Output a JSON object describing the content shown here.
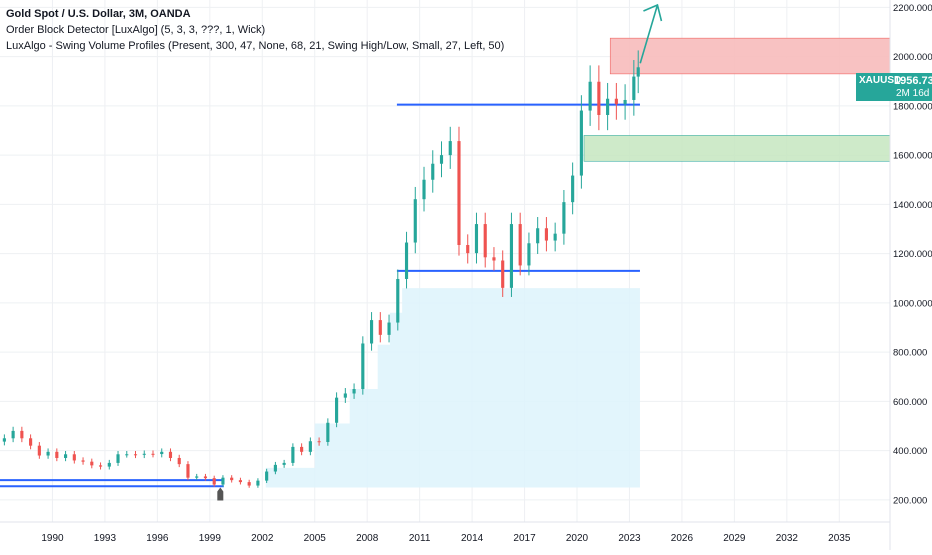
{
  "legend": {
    "title": "Gold Spot / U.S. Dollar, 3M, OANDA",
    "indicator_1": "Order Block Detector [LuxAlgo] (5, 3, 3, ???, 1, Wick)",
    "indicator_2": "LuxAlgo - Swing Volume Profiles (Present, 300, 47, None, 68, 21, Swing High/Low, Small, 27, Left, 50)"
  },
  "price_tag": {
    "symbol": "XAUUSD",
    "price": "1956.730",
    "countdown": "2M 16d",
    "color": "#26a69a"
  },
  "colors": {
    "up": "#26a69a",
    "down": "#ef5350",
    "hline": "#2962ff",
    "arrow": "#26a69a",
    "bear_ob_fill": "#f8bcbc",
    "bull_ob_fill": "#c9e8c4",
    "profile_fill": "#ddf3fb",
    "grid": "#eef0f3",
    "axis_text": "#131722"
  },
  "chart_data": {
    "type": "candlestick",
    "symbol": "XAUUSD",
    "timeframe": "3M",
    "x_ticks": [
      "1990",
      "1993",
      "1996",
      "1999",
      "2002",
      "2005",
      "2008",
      "2011",
      "2014",
      "2017",
      "2020",
      "2023",
      "2026",
      "2029",
      "2032",
      "2035"
    ],
    "y_ticks": [
      "200.000",
      "400.000",
      "600.000",
      "800.000",
      "1000.000",
      "1200.000",
      "1400.000",
      "1600.000",
      "1800.000",
      "2000.000",
      "2200.000"
    ],
    "y_range": [
      110,
      2230
    ],
    "x_range": [
      1987.0,
      2037.9
    ],
    "grid": true,
    "quarterly_close": [
      [
        1987.25,
        450
      ],
      [
        1987.75,
        480
      ],
      [
        1988.25,
        450
      ],
      [
        1988.75,
        420
      ],
      [
        1989.25,
        380
      ],
      [
        1989.75,
        395
      ],
      [
        1990.25,
        370
      ],
      [
        1990.75,
        385
      ],
      [
        1991.25,
        360
      ],
      [
        1991.75,
        355
      ],
      [
        1992.25,
        340
      ],
      [
        1992.75,
        335
      ],
      [
        1993.25,
        350
      ],
      [
        1993.75,
        385
      ],
      [
        1994.25,
        385
      ],
      [
        1994.75,
        383
      ],
      [
        1995.25,
        387
      ],
      [
        1995.75,
        386
      ],
      [
        1996.25,
        395
      ],
      [
        1996.75,
        370
      ],
      [
        1997.25,
        345
      ],
      [
        1997.75,
        290
      ],
      [
        1998.25,
        295
      ],
      [
        1998.75,
        288
      ],
      [
        1999.25,
        262
      ],
      [
        1999.75,
        290
      ],
      [
        2000.25,
        280
      ],
      [
        2000.75,
        272
      ],
      [
        2001.25,
        258
      ],
      [
        2001.75,
        278
      ],
      [
        2002.25,
        315
      ],
      [
        2002.75,
        342
      ],
      [
        2003.25,
        350
      ],
      [
        2003.75,
        415
      ],
      [
        2004.25,
        395
      ],
      [
        2004.75,
        438
      ],
      [
        2005.25,
        435
      ],
      [
        2005.75,
        513
      ],
      [
        2006.25,
        615
      ],
      [
        2006.75,
        632
      ],
      [
        2007.25,
        650
      ],
      [
        2007.75,
        835
      ],
      [
        2008.25,
        930
      ],
      [
        2008.75,
        870
      ],
      [
        2009.25,
        920
      ],
      [
        2009.75,
        1097
      ],
      [
        2010.25,
        1245
      ],
      [
        2010.75,
        1421
      ],
      [
        2011.25,
        1500
      ],
      [
        2011.75,
        1565
      ],
      [
        2012.25,
        1600
      ],
      [
        2012.75,
        1657
      ],
      [
        2013.25,
        1235
      ],
      [
        2013.75,
        1202
      ],
      [
        2014.25,
        1320
      ],
      [
        2014.75,
        1185
      ],
      [
        2015.25,
        1172
      ],
      [
        2015.75,
        1061
      ],
      [
        2016.25,
        1320
      ],
      [
        2016.75,
        1152
      ],
      [
        2017.25,
        1242
      ],
      [
        2017.75,
        1303
      ],
      [
        2018.25,
        1253
      ],
      [
        2018.75,
        1281
      ],
      [
        2019.25,
        1409
      ],
      [
        2019.75,
        1517
      ],
      [
        2020.25,
        1781
      ],
      [
        2020.75,
        1898
      ],
      [
        2021.25,
        1763
      ],
      [
        2021.75,
        1829
      ],
      [
        2022.25,
        1807
      ],
      [
        2022.75,
        1824
      ],
      [
        2023.25,
        1919
      ],
      [
        2023.5,
        1956.73
      ]
    ],
    "horizontal_levels": [
      1805,
      1130,
      280,
      255
    ],
    "order_blocks": [
      {
        "type": "bearish",
        "top": 2075,
        "bottom": 1930,
        "start": 2021.9
      },
      {
        "type": "bullish",
        "top": 1680,
        "bottom": 1575,
        "start": 2020.4
      }
    ],
    "volume_profile_zone": {
      "top": 1060,
      "bottom": 250,
      "start": 2002.2,
      "end": 2023.6
    },
    "last_price": 1956.73
  }
}
